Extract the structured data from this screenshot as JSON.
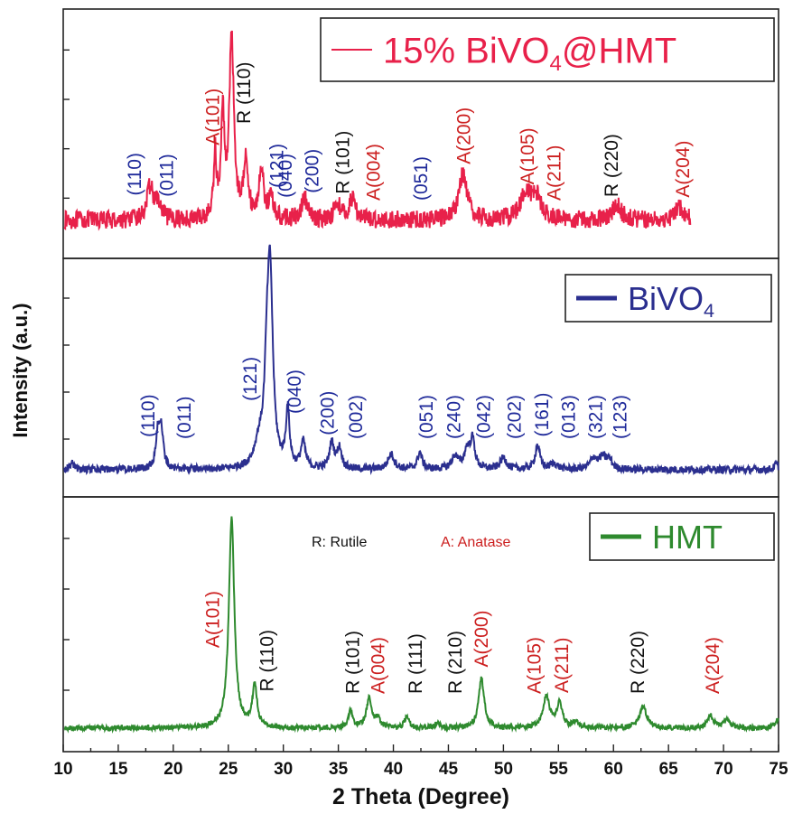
{
  "chart_data": {
    "type": "line",
    "xlabel": "2 Theta (Degree)",
    "ylabel": "Intensity (a.u.)",
    "xlim": [
      10,
      75
    ],
    "xticks": [
      "10",
      "15",
      "20",
      "25",
      "30",
      "35",
      "40",
      "45",
      "50",
      "55",
      "60",
      "65",
      "70",
      "75"
    ],
    "key": {
      "rutile": "R: Rutile",
      "anatase": "A: Anatase"
    },
    "colors": {
      "black_label": "#111111",
      "red_label": "#cc1f1f",
      "blue_label": "#1f2a9a"
    },
    "panels": [
      {
        "name": "15% BiVO4@HMT",
        "legend_main": "15% BiVO",
        "legend_sub": "4",
        "legend_tail": "@HMT",
        "color": "#e8214a",
        "x_end": 67,
        "baseline": 0.08,
        "noise": 0.05,
        "peaks": [
          [
            17.9,
            0.18,
            0.35
          ],
          [
            18.6,
            0.08,
            0.3
          ],
          [
            23.8,
            0.35,
            0.15
          ],
          [
            24.5,
            0.55,
            0.18
          ],
          [
            25.3,
            1.0,
            0.25
          ],
          [
            26.6,
            0.35,
            0.22
          ],
          [
            28.0,
            0.28,
            0.25
          ],
          [
            28.9,
            0.12,
            0.25
          ],
          [
            31.9,
            0.12,
            0.3
          ],
          [
            34.9,
            0.1,
            0.3
          ],
          [
            36.3,
            0.12,
            0.35
          ],
          [
            46.3,
            0.25,
            0.45
          ],
          [
            52.0,
            0.14,
            0.6
          ],
          [
            53.0,
            0.12,
            0.5
          ],
          [
            60.3,
            0.08,
            0.5
          ],
          [
            66.0,
            0.07,
            0.5
          ]
        ],
        "labels": [
          {
            "text": "(110)",
            "x": 16.5,
            "color": "blue"
          },
          {
            "text": "(011)",
            "x": 19.4,
            "color": "blue"
          },
          {
            "text": "A(101)",
            "x": 23.6,
            "color": "red"
          },
          {
            "text": "R (110)",
            "x": 26.4,
            "color": "black"
          },
          {
            "text": "(121)",
            "x": 29.4,
            "color": "blue"
          },
          {
            "text": "(040)",
            "x": 30.2,
            "color": "blue"
          },
          {
            "text": "(200)",
            "x": 32.6,
            "color": "blue"
          },
          {
            "text": "R (101)",
            "x": 35.4,
            "color": "black"
          },
          {
            "text": "A(004)",
            "x": 38.2,
            "color": "red"
          },
          {
            "text": "(051)",
            "x": 42.5,
            "color": "blue"
          },
          {
            "text": "A(200)",
            "x": 46.4,
            "color": "red"
          },
          {
            "text": "A(105)",
            "x": 52.2,
            "color": "red"
          },
          {
            "text": "A(211)",
            "x": 54.6,
            "color": "red"
          },
          {
            "text": "R (220)",
            "x": 59.8,
            "color": "black"
          },
          {
            "text": "A(204)",
            "x": 66.3,
            "color": "red"
          }
        ]
      },
      {
        "name": "BiVO4",
        "legend_main": "BiVO",
        "legend_sub": "4",
        "legend_tail": "",
        "color": "#2b2f8f",
        "x_end": 75,
        "baseline": 0.02,
        "noise": 0.02,
        "peaks": [
          [
            10.8,
            0.04,
            0.2
          ],
          [
            18.6,
            0.18,
            0.22
          ],
          [
            18.9,
            0.2,
            0.22
          ],
          [
            27.8,
            0.12,
            0.5
          ],
          [
            28.5,
            0.35,
            0.25
          ],
          [
            28.8,
            1.0,
            0.3
          ],
          [
            30.4,
            0.3,
            0.2
          ],
          [
            31.8,
            0.14,
            0.25
          ],
          [
            34.4,
            0.14,
            0.25
          ],
          [
            35.1,
            0.11,
            0.25
          ],
          [
            39.8,
            0.08,
            0.35
          ],
          [
            42.4,
            0.09,
            0.25
          ],
          [
            45.6,
            0.07,
            0.35
          ],
          [
            46.7,
            0.1,
            0.3
          ],
          [
            47.2,
            0.15,
            0.25
          ],
          [
            50.0,
            0.06,
            0.35
          ],
          [
            53.1,
            0.13,
            0.25
          ],
          [
            54.6,
            0.03,
            0.4
          ],
          [
            58.2,
            0.06,
            0.35
          ],
          [
            59.0,
            0.06,
            0.35
          ],
          [
            59.6,
            0.05,
            0.3
          ],
          [
            74.8,
            0.03,
            0.2
          ]
        ],
        "labels": [
          {
            "text": "(110)",
            "x": 17.7,
            "color": "blue"
          },
          {
            "text": "(011)",
            "x": 21.0,
            "color": "blue"
          },
          {
            "text": "(121)",
            "x": 27.0,
            "color": "blue"
          },
          {
            "text": "(040)",
            "x": 31.0,
            "color": "blue"
          },
          {
            "text": "(200)",
            "x": 34.0,
            "color": "blue"
          },
          {
            "text": "(002)",
            "x": 36.6,
            "color": "blue"
          },
          {
            "text": "(051)",
            "x": 43.0,
            "color": "blue"
          },
          {
            "text": "(240)",
            "x": 45.5,
            "color": "blue"
          },
          {
            "text": "(042)",
            "x": 48.2,
            "color": "blue"
          },
          {
            "text": "(202)",
            "x": 51.0,
            "color": "blue"
          },
          {
            "text": "(161)",
            "x": 53.5,
            "color": "blue"
          },
          {
            "text": "(013)",
            "x": 55.9,
            "color": "blue"
          },
          {
            "text": "(321)",
            "x": 58.4,
            "color": "blue"
          },
          {
            "text": "(123)",
            "x": 60.6,
            "color": "blue"
          }
        ]
      },
      {
        "name": "HMT",
        "legend_main": "HMT",
        "legend_sub": "",
        "legend_tail": "",
        "color": "#2e8a2e",
        "x_end": 75,
        "baseline": 0.0,
        "noise": 0.012,
        "peaks": [
          [
            25.3,
            1.0,
            0.3
          ],
          [
            27.4,
            0.2,
            0.25
          ],
          [
            36.1,
            0.08,
            0.25
          ],
          [
            37.8,
            0.14,
            0.3
          ],
          [
            38.6,
            0.04,
            0.25
          ],
          [
            41.2,
            0.05,
            0.25
          ],
          [
            44.0,
            0.02,
            0.3
          ],
          [
            48.0,
            0.24,
            0.3
          ],
          [
            53.9,
            0.15,
            0.35
          ],
          [
            55.1,
            0.12,
            0.3
          ],
          [
            56.6,
            0.03,
            0.3
          ],
          [
            62.7,
            0.1,
            0.4
          ],
          [
            68.8,
            0.06,
            0.35
          ],
          [
            70.3,
            0.04,
            0.35
          ],
          [
            74.9,
            0.04,
            0.3
          ]
        ],
        "labels": [
          {
            "text": "A(101)",
            "x": 23.6,
            "color": "red"
          },
          {
            "text": "R (110)",
            "x": 28.5,
            "color": "black"
          },
          {
            "text": "R (101)",
            "x": 36.3,
            "color": "black"
          },
          {
            "text": "A(004)",
            "x": 38.6,
            "color": "red"
          },
          {
            "text": "R (111)",
            "x": 42.0,
            "color": "black"
          },
          {
            "text": "R (210)",
            "x": 45.6,
            "color": "black"
          },
          {
            "text": "A(200)",
            "x": 48.0,
            "color": "red"
          },
          {
            "text": "A(105)",
            "x": 52.8,
            "color": "red"
          },
          {
            "text": "A(211)",
            "x": 55.3,
            "color": "red"
          },
          {
            "text": "R (220)",
            "x": 62.2,
            "color": "black"
          },
          {
            "text": "A(204)",
            "x": 69.0,
            "color": "red"
          }
        ]
      }
    ]
  }
}
